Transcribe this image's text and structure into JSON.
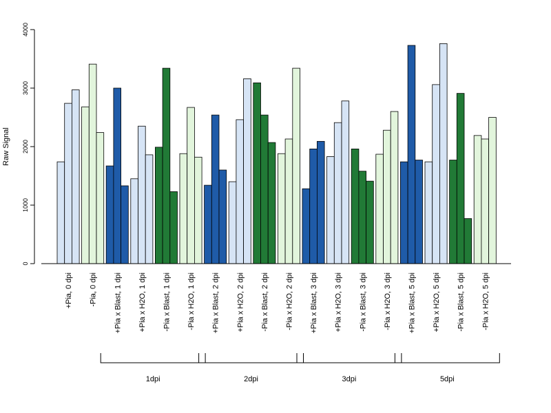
{
  "chart_data": {
    "type": "bar",
    "ylabel": "Raw Signal",
    "ylim": [
      0,
      4000
    ],
    "yticks": [
      "0",
      "1000",
      "2000",
      "3000",
      "4000"
    ],
    "colors": {
      "light_blue": "#d6e4f5",
      "light_green": "#e2f5dc",
      "dark_blue": "#1f5ba8",
      "dark_green": "#217a36"
    },
    "categories": [
      {
        "label": "+Pia, 0 dpi",
        "color": "light_blue",
        "values": [
          1740,
          2740,
          2970
        ]
      },
      {
        "label": "-Pia, 0 dpi",
        "color": "light_green",
        "values": [
          2680,
          3410,
          2240
        ]
      },
      {
        "label": "+Pia x Blast, 1 dpi",
        "color": "dark_blue",
        "values": [
          1670,
          3000,
          1330
        ]
      },
      {
        "label": "+Pia x H2O, 1 dpi",
        "color": "light_blue",
        "values": [
          1450,
          2350,
          1860
        ]
      },
      {
        "label": "-Pia x Blast, 1 dpi",
        "color": "dark_green",
        "values": [
          1990,
          3340,
          1230
        ]
      },
      {
        "label": "-Pia x H2O, 1 dpi",
        "color": "light_green",
        "values": [
          1880,
          2670,
          1820
        ]
      },
      {
        "label": "+Pia x Blast, 2 dpi",
        "color": "dark_blue",
        "values": [
          1340,
          2540,
          1600
        ]
      },
      {
        "label": "+Pia x H2O, 2 dpi",
        "color": "light_blue",
        "values": [
          1400,
          2460,
          3160
        ]
      },
      {
        "label": "-Pia x Blast, 2 dpi",
        "color": "dark_green",
        "values": [
          3090,
          2540,
          2070
        ]
      },
      {
        "label": "-Pia x H2O, 2 dpi",
        "color": "light_green",
        "values": [
          1880,
          2130,
          3340
        ]
      },
      {
        "label": "+Pia x Blast, 3 dpi",
        "color": "dark_blue",
        "values": [
          1280,
          1960,
          2090
        ]
      },
      {
        "label": "+Pia x H2O, 3 dpi",
        "color": "light_blue",
        "values": [
          1830,
          2410,
          2780
        ]
      },
      {
        "label": "-Pia x Blast, 3 dpi",
        "color": "dark_green",
        "values": [
          1960,
          1580,
          1410
        ]
      },
      {
        "label": "-Pia x H2O, 3 dpi",
        "color": "light_green",
        "values": [
          1870,
          2280,
          2600
        ]
      },
      {
        "label": "+Pia x Blast, 5 dpi",
        "color": "dark_blue",
        "values": [
          1740,
          3730,
          1770
        ]
      },
      {
        "label": "+Pia x H2O, 5 dpi",
        "color": "light_blue",
        "values": [
          1740,
          3060,
          3760
        ]
      },
      {
        "label": "-Pia x Blast, 5 dpi",
        "color": "dark_green",
        "values": [
          1770,
          2910,
          770
        ]
      },
      {
        "label": "-Pia x H2O, 5 dpi",
        "color": "light_green",
        "values": [
          2190,
          2130,
          2500
        ]
      }
    ],
    "groups": [
      {
        "label": "1dpi",
        "first_category": 2,
        "last_category": 5
      },
      {
        "label": "2dpi",
        "first_category": 6,
        "last_category": 9
      },
      {
        "label": "3dpi",
        "first_category": 10,
        "last_category": 13
      },
      {
        "label": "5dpi",
        "first_category": 14,
        "last_category": 17
      }
    ]
  }
}
